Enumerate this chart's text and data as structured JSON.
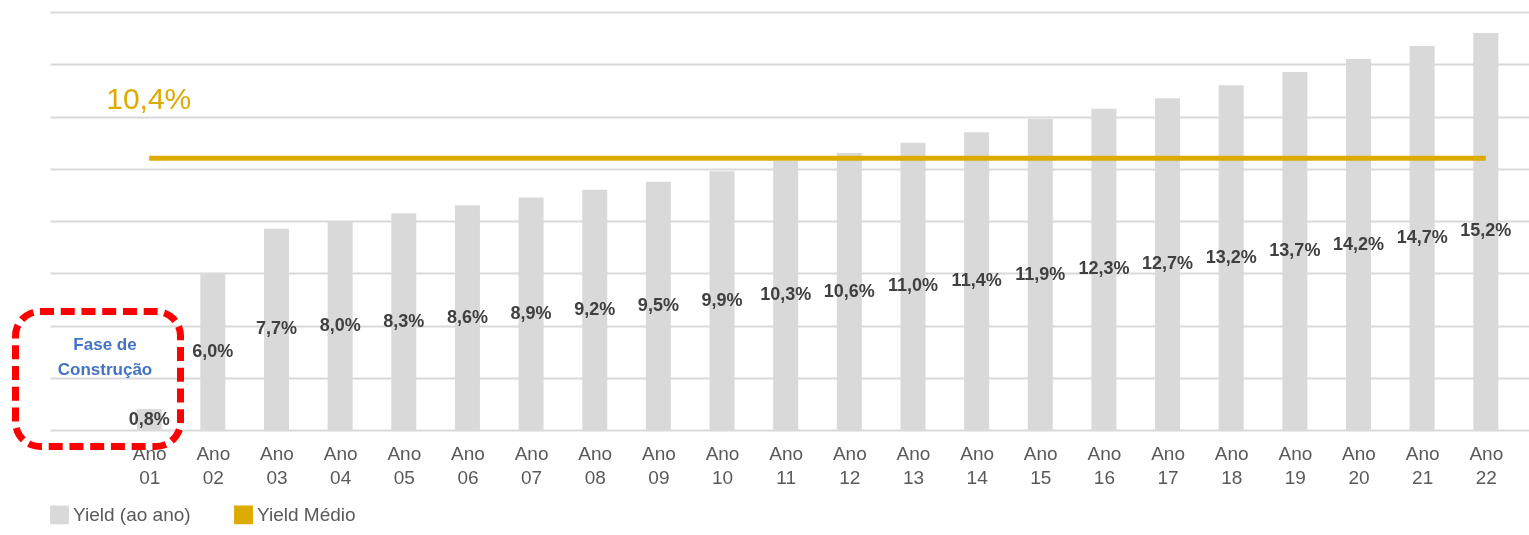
{
  "chart_data": {
    "type": "bar",
    "categories": [
      "Ano 01",
      "Ano 02",
      "Ano 03",
      "Ano 04",
      "Ano 05",
      "Ano 06",
      "Ano 07",
      "Ano 08",
      "Ano 09",
      "Ano 10",
      "Ano 11",
      "Ano 12",
      "Ano 13",
      "Ano 14",
      "Ano 15",
      "Ano 16",
      "Ano 17",
      "Ano 18",
      "Ano 19",
      "Ano 20",
      "Ano 21",
      "Ano 22"
    ],
    "series": [
      {
        "name": "Yield (ao ano)",
        "color": "#d9d9d9",
        "values": [
          0.8,
          6.0,
          7.7,
          8.0,
          8.3,
          8.6,
          8.9,
          9.2,
          9.5,
          9.9,
          10.3,
          10.6,
          11.0,
          11.4,
          11.9,
          12.3,
          12.7,
          13.2,
          13.7,
          14.2,
          14.7,
          15.2
        ],
        "value_labels": [
          "0,8%",
          "6,0%",
          "7,7%",
          "8,0%",
          "8,3%",
          "8,6%",
          "8,9%",
          "9,2%",
          "9,5%",
          "9,9%",
          "10,3%",
          "10,6%",
          "11,0%",
          "11,4%",
          "11,9%",
          "12,3%",
          "12,7%",
          "13,2%",
          "13,7%",
          "14,2%",
          "14,7%",
          "15,2%"
        ]
      },
      {
        "name": "Yield Médio",
        "type": "line",
        "color": "#ddaa00",
        "values": [
          10.4,
          10.4,
          10.4,
          10.4,
          10.4,
          10.4,
          10.4,
          10.4,
          10.4,
          10.4,
          10.4,
          10.4,
          10.4,
          10.4,
          10.4,
          10.4,
          10.4,
          10.4,
          10.4,
          10.4,
          10.4,
          10.4
        ]
      }
    ],
    "annotations": [
      {
        "text": "10,4%",
        "x": "Ano 01",
        "y": 10.4
      },
      "Fase de Construção"
    ],
    "ylim": [
      0,
      16
    ],
    "yticks": [
      {
        "value": 0,
        "label": null
      },
      {
        "value": 2,
        "label": null
      },
      {
        "value": 4,
        "label": null
      },
      {
        "value": 6,
        "label": null
      },
      {
        "value": 8,
        "label": null
      },
      {
        "value": 10,
        "label": null
      },
      {
        "value": 12,
        "label": null
      },
      {
        "value": 14,
        "label": null
      },
      {
        "value": 16,
        "label": null
      }
    ],
    "tick_labels": "x",
    "grid": "y",
    "legend": "bottom"
  }
}
